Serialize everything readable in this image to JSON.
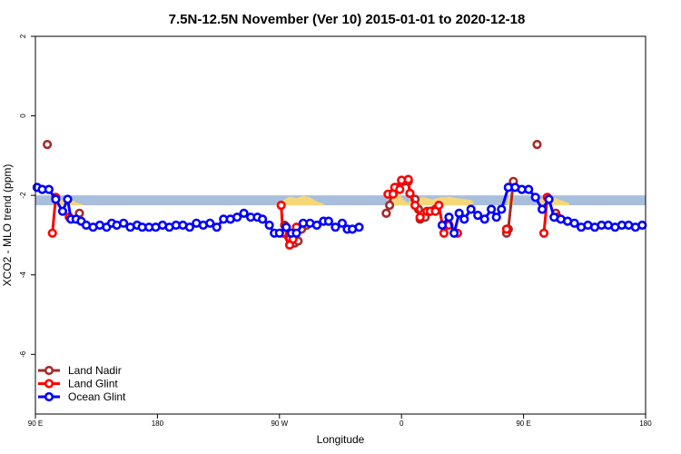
{
  "chart_data": {
    "type": "line",
    "title": "7.5N-12.5N November (Ver 10)   2015-01-01 to 2020-12-18",
    "xlabel": "Longitude",
    "ylabel": "XCO2 - MLO trend (ppm)",
    "xlim": [
      -90,
      270
    ],
    "ylim": [
      -7.5,
      2
    ],
    "x_ticks": [
      {
        "value": -90,
        "label": "90 E"
      },
      {
        "value": -18,
        "label": "180"
      },
      {
        "value": 54,
        "label": "90 W"
      },
      {
        "value": 126,
        "label": "0"
      },
      {
        "value": 198,
        "label": "90 E"
      },
      {
        "value": 270,
        "label": "180"
      }
    ],
    "y_ticks": [
      {
        "value": 2,
        "label": "2"
      },
      {
        "value": 0,
        "label": "0"
      },
      {
        "value": -2,
        "label": "-2"
      },
      {
        "value": -4,
        "label": "-4"
      },
      {
        "value": -6,
        "label": "-6"
      }
    ],
    "band": {
      "ymin": -2.25,
      "ymax": -2.0,
      "color": "#a8bedd"
    },
    "topography_color": "#f5d77a",
    "topography": [
      {
        "xs": -80,
        "xe": -62,
        "h": [
          0.02,
          0.08,
          0.15,
          0.18,
          0.12,
          0.06,
          0.02
        ]
      },
      {
        "xs": 52,
        "xe": 80,
        "h": [
          0.03,
          0.12,
          0.22,
          0.18,
          0.24,
          0.2,
          0.1,
          0.04
        ]
      },
      {
        "xs": 118,
        "xe": 130,
        "h": [
          0.04,
          0.2,
          0.3,
          0.15,
          0.05
        ]
      },
      {
        "xs": 130,
        "xe": 168,
        "h": [
          0.08,
          0.18,
          0.2,
          0.15,
          0.2,
          0.22,
          0.18,
          0.16,
          0.12
        ]
      },
      {
        "xs": 188,
        "xe": 192,
        "h": [
          0.05,
          0.3,
          0.1
        ]
      },
      {
        "xs": 206,
        "xe": 225,
        "h": [
          0.1,
          0.25,
          0.15,
          0.05
        ]
      }
    ],
    "series": [
      {
        "name": "Land Nadir",
        "color": "#a52a2a",
        "segments": [
          [
            [
              -83,
              -0.72
            ]
          ],
          [
            [
              -64,
              -2.45
            ]
          ],
          [
            [
              57,
              -2.75
            ],
            [
              59,
              -2.95
            ],
            [
              60,
              -3.1
            ],
            [
              63,
              -3.2
            ],
            [
              65,
              -3.15
            ]
          ],
          [
            [
              67,
              -2.85
            ],
            [
              70,
              -2.75
            ]
          ],
          [
            [
              117,
              -2.45
            ],
            [
              119,
              -2.25
            ],
            [
              120,
              -1.97
            ],
            [
              123,
              -1.8
            ],
            [
              127,
              -1.65
            ],
            [
              130,
              -1.65
            ],
            [
              131,
              -1.95
            ],
            [
              134,
              -2.1
            ],
            [
              136,
              -2.35
            ],
            [
              137,
              -2.6
            ],
            [
              140,
              -2.55
            ],
            [
              143,
              -2.4
            ],
            [
              146,
              -2.35
            ]
          ],
          [
            [
              188,
              -2.95
            ],
            [
              189,
              -2.85
            ],
            [
              192,
              -1.65
            ]
          ],
          [
            [
              206,
              -0.72
            ]
          ],
          [
            [
              217,
              -2.45
            ],
            [
              218,
              -2.55
            ]
          ]
        ]
      },
      {
        "name": "Land Glint",
        "color": "#ff0000",
        "segments": [
          [
            [
              -80,
              -2.95
            ],
            [
              -78,
              -2.05
            ]
          ],
          [
            [
              -70,
              -2.55
            ]
          ],
          [
            [
              55,
              -2.25
            ],
            [
              56,
              -2.95
            ],
            [
              60,
              -3.25
            ],
            [
              62,
              -3.1
            ],
            [
              64,
              -2.8
            ]
          ],
          [
            [
              118,
              -1.97
            ],
            [
              121,
              -1.97
            ],
            [
              122,
              -1.8
            ],
            [
              125,
              -1.85
            ],
            [
              126,
              -1.62
            ],
            [
              130,
              -1.6
            ],
            [
              131,
              -1.95
            ],
            [
              134,
              -2.25
            ],
            [
              137,
              -2.55
            ],
            [
              141,
              -2.4
            ],
            [
              143,
              -2.4
            ],
            [
              146,
              -2.4
            ],
            [
              148,
              -2.25
            ],
            [
              151,
              -2.95
            ],
            [
              154,
              -2.75
            ],
            [
              159,
              -2.95
            ]
          ],
          [
            [
              188,
              -2.85
            ]
          ],
          [
            [
              210,
              -2.95
            ],
            [
              212,
              -2.05
            ]
          ],
          [
            [
              218,
              -2.55
            ]
          ]
        ]
      },
      {
        "name": "Ocean Glint",
        "color": "#0000ff",
        "segments": [
          [
            [
              -89,
              -1.8
            ],
            [
              -86,
              -1.85
            ],
            [
              -82,
              -1.85
            ],
            [
              -78,
              -2.1
            ],
            [
              -74,
              -2.4
            ],
            [
              -71,
              -2.1
            ],
            [
              -69,
              -2.6
            ],
            [
              -66,
              -2.6
            ],
            [
              -63,
              -2.65
            ],
            [
              -60,
              -2.75
            ],
            [
              -56,
              -2.8
            ],
            [
              -52,
              -2.75
            ],
            [
              -48,
              -2.8
            ],
            [
              -45,
              -2.7
            ],
            [
              -42,
              -2.75
            ],
            [
              -38,
              -2.7
            ],
            [
              -34,
              -2.8
            ],
            [
              -30,
              -2.75
            ],
            [
              -27,
              -2.8
            ],
            [
              -23,
              -2.8
            ],
            [
              -19,
              -2.8
            ],
            [
              -15,
              -2.75
            ],
            [
              -11,
              -2.8
            ],
            [
              -7,
              -2.75
            ],
            [
              -3,
              -2.75
            ],
            [
              1,
              -2.8
            ],
            [
              5,
              -2.7
            ],
            [
              9,
              -2.75
            ],
            [
              13,
              -2.7
            ],
            [
              17,
              -2.8
            ],
            [
              21,
              -2.6
            ],
            [
              25,
              -2.6
            ],
            [
              29,
              -2.55
            ],
            [
              33,
              -2.45
            ],
            [
              37,
              -2.55
            ],
            [
              41,
              -2.55
            ],
            [
              44,
              -2.6
            ],
            [
              48,
              -2.75
            ],
            [
              51,
              -2.95
            ],
            [
              54,
              -2.95
            ],
            [
              58,
              -2.8
            ],
            [
              61,
              -2.95
            ],
            [
              64,
              -2.95
            ],
            [
              68,
              -2.7
            ],
            [
              72,
              -2.7
            ],
            [
              76,
              -2.75
            ],
            [
              80,
              -2.65
            ],
            [
              83,
              -2.65
            ],
            [
              87,
              -2.8
            ],
            [
              91,
              -2.7
            ],
            [
              94,
              -2.85
            ],
            [
              97,
              -2.85
            ],
            [
              101,
              -2.8
            ]
          ],
          [
            [
              150,
              -2.75
            ],
            [
              154,
              -2.55
            ],
            [
              157,
              -2.95
            ],
            [
              160,
              -2.45
            ],
            [
              163,
              -2.6
            ],
            [
              167,
              -2.35
            ],
            [
              171,
              -2.5
            ],
            [
              175,
              -2.6
            ],
            [
              179,
              -2.35
            ],
            [
              182,
              -2.55
            ],
            [
              185,
              -2.35
            ],
            [
              189,
              -1.8
            ],
            [
              193,
              -1.8
            ],
            [
              197,
              -1.85
            ],
            [
              201,
              -1.85
            ],
            [
              205,
              -2.05
            ],
            [
              209,
              -2.35
            ],
            [
              213,
              -2.1
            ],
            [
              216,
              -2.55
            ],
            [
              220,
              -2.6
            ],
            [
              224,
              -2.65
            ],
            [
              228,
              -2.7
            ],
            [
              232,
              -2.8
            ],
            [
              236,
              -2.75
            ],
            [
              240,
              -2.8
            ],
            [
              244,
              -2.75
            ],
            [
              248,
              -2.75
            ],
            [
              252,
              -2.8
            ],
            [
              256,
              -2.75
            ],
            [
              260,
              -2.75
            ],
            [
              264,
              -2.8
            ],
            [
              268,
              -2.75
            ]
          ]
        ]
      }
    ],
    "legend": {
      "position": "bottom-left",
      "entries": [
        "Land Nadir",
        "Land Glint",
        "Ocean Glint"
      ]
    }
  }
}
